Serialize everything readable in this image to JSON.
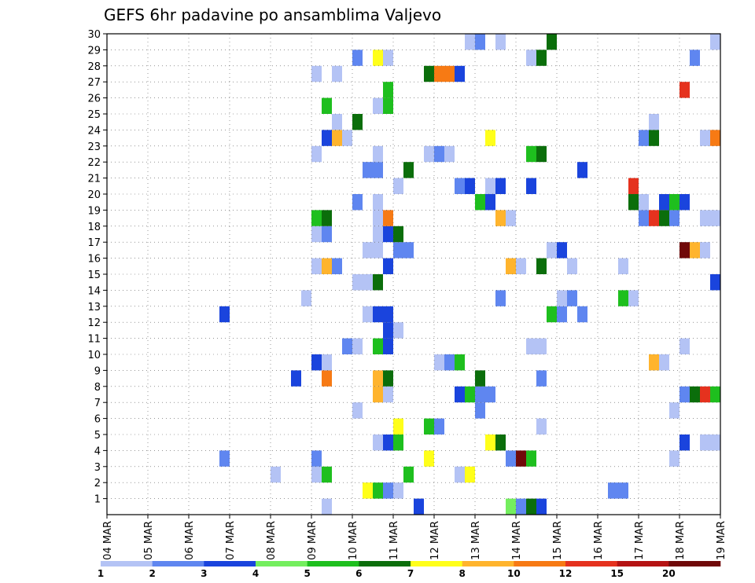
{
  "chart_data": {
    "type": "heatmap",
    "title": "GEFS 6hr padavine po ansamblima Valjevo",
    "x_tick_labels": [
      "04 MAR",
      "05 MAR",
      "06 MAR",
      "07 MAR",
      "08 MAR",
      "09 MAR",
      "10 MAR",
      "11 MAR",
      "12 MAR",
      "13 MAR",
      "14 MAR",
      "15 MAR",
      "16 MAR",
      "17 MAR",
      "18 MAR",
      "19 MAR"
    ],
    "y_tick_labels": [
      "1",
      "2",
      "3",
      "4",
      "5",
      "6",
      "7",
      "8",
      "9",
      "10",
      "11",
      "12",
      "13",
      "14",
      "15",
      "16",
      "17",
      "18",
      "19",
      "20",
      "21",
      "22",
      "23",
      "24",
      "25",
      "26",
      "27",
      "28",
      "29",
      "30"
    ],
    "xlim_days": [
      0,
      15
    ],
    "ylim_members": [
      0,
      30
    ],
    "grid": true,
    "colorbar_levels": [
      1,
      2,
      3,
      4,
      5,
      6,
      7,
      8,
      10,
      12,
      15,
      20
    ],
    "colorbar_colors": [
      "#b4c3f5",
      "#5f86f0",
      "#1a44dd",
      "#74ee5e",
      "#1ebf1e",
      "#0b6e0b",
      "#ffff1a",
      "#ffb42d",
      "#f77a14",
      "#e5321e",
      "#b51313",
      "#700909"
    ],
    "cells": [
      [
        5.25,
        0,
        0
      ],
      [
        7.5,
        0,
        2
      ],
      [
        9.75,
        0,
        3
      ],
      [
        10,
        0,
        1
      ],
      [
        10.25,
        0,
        5
      ],
      [
        10.5,
        0,
        2
      ],
      [
        6.25,
        1,
        6
      ],
      [
        6.5,
        1,
        4
      ],
      [
        6.75,
        1,
        1
      ],
      [
        7,
        1,
        0
      ],
      [
        12.25,
        1,
        1
      ],
      [
        12.5,
        1,
        1
      ],
      [
        4,
        2,
        0
      ],
      [
        5,
        2,
        0
      ],
      [
        5.25,
        2,
        4
      ],
      [
        7.25,
        2,
        4
      ],
      [
        8.5,
        2,
        0
      ],
      [
        8.75,
        2,
        6
      ],
      [
        2.75,
        3,
        1
      ],
      [
        5,
        3,
        1
      ],
      [
        7.75,
        3,
        6
      ],
      [
        9.75,
        3,
        1
      ],
      [
        10,
        3,
        11
      ],
      [
        10.25,
        3,
        4
      ],
      [
        13.75,
        3,
        0
      ],
      [
        6.5,
        4,
        0
      ],
      [
        6.75,
        4,
        2
      ],
      [
        7,
        4,
        4
      ],
      [
        9.25,
        4,
        6
      ],
      [
        9.5,
        4,
        5
      ],
      [
        14,
        4,
        2
      ],
      [
        14.5,
        4,
        0
      ],
      [
        14.75,
        4,
        0
      ],
      [
        7,
        5,
        6
      ],
      [
        7.75,
        5,
        4
      ],
      [
        8,
        5,
        1
      ],
      [
        10.5,
        5,
        0
      ],
      [
        6,
        6,
        0
      ],
      [
        9,
        6,
        1
      ],
      [
        13.75,
        6,
        0
      ],
      [
        6.5,
        7,
        7
      ],
      [
        6.75,
        7,
        0
      ],
      [
        8.5,
        7,
        2
      ],
      [
        8.75,
        7,
        4
      ],
      [
        9,
        7,
        1
      ],
      [
        9.25,
        7,
        1
      ],
      [
        14,
        7,
        1
      ],
      [
        14.25,
        7,
        5
      ],
      [
        14.5,
        7,
        9
      ],
      [
        14.75,
        7,
        4
      ],
      [
        4.5,
        8,
        2
      ],
      [
        5.25,
        8,
        8
      ],
      [
        6.5,
        8,
        7
      ],
      [
        6.75,
        8,
        5
      ],
      [
        9,
        8,
        5
      ],
      [
        10.5,
        8,
        1
      ],
      [
        5,
        9,
        2
      ],
      [
        5.25,
        9,
        0
      ],
      [
        8,
        9,
        0
      ],
      [
        8.25,
        9,
        1
      ],
      [
        8.5,
        9,
        4
      ],
      [
        13.25,
        9,
        7
      ],
      [
        13.5,
        9,
        0
      ],
      [
        5.75,
        10,
        1
      ],
      [
        6,
        10,
        0
      ],
      [
        6.5,
        10,
        4
      ],
      [
        6.75,
        10,
        2
      ],
      [
        10.25,
        10,
        0
      ],
      [
        10.5,
        10,
        0
      ],
      [
        14,
        10,
        0
      ],
      [
        6.75,
        11,
        2
      ],
      [
        7,
        11,
        0
      ],
      [
        2.75,
        12,
        2
      ],
      [
        6.25,
        12,
        0
      ],
      [
        6.5,
        12,
        2
      ],
      [
        6.75,
        12,
        2
      ],
      [
        10.75,
        12,
        4
      ],
      [
        11,
        12,
        1
      ],
      [
        11.5,
        12,
        1
      ],
      [
        4.75,
        13,
        0
      ],
      [
        9.5,
        13,
        1
      ],
      [
        11,
        13,
        0
      ],
      [
        11.25,
        13,
        1
      ],
      [
        12.5,
        13,
        4
      ],
      [
        12.75,
        13,
        0
      ],
      [
        6,
        14,
        0
      ],
      [
        6.25,
        14,
        0
      ],
      [
        6.5,
        14,
        5
      ],
      [
        14.75,
        14,
        2
      ],
      [
        15,
        14,
        10
      ],
      [
        5,
        15,
        0
      ],
      [
        5.25,
        15,
        7
      ],
      [
        5.5,
        15,
        1
      ],
      [
        6.75,
        15,
        2
      ],
      [
        9.75,
        15,
        7
      ],
      [
        10,
        15,
        0
      ],
      [
        10.5,
        15,
        5
      ],
      [
        11.25,
        15,
        0
      ],
      [
        12.5,
        15,
        0
      ],
      [
        6.25,
        16,
        0
      ],
      [
        6.5,
        16,
        0
      ],
      [
        7,
        16,
        1
      ],
      [
        7.25,
        16,
        1
      ],
      [
        10.75,
        16,
        0
      ],
      [
        11,
        16,
        2
      ],
      [
        14,
        16,
        11
      ],
      [
        14.25,
        16,
        7
      ],
      [
        14.5,
        16,
        0
      ],
      [
        5,
        17,
        0
      ],
      [
        5.25,
        17,
        1
      ],
      [
        6.5,
        17,
        0
      ],
      [
        6.75,
        17,
        2
      ],
      [
        7,
        17,
        5
      ],
      [
        5,
        18,
        4
      ],
      [
        5.25,
        18,
        5
      ],
      [
        6.5,
        18,
        0
      ],
      [
        6.75,
        18,
        8
      ],
      [
        9.5,
        18,
        7
      ],
      [
        9.75,
        18,
        0
      ],
      [
        13,
        18,
        1
      ],
      [
        13.25,
        18,
        9
      ],
      [
        13.5,
        18,
        5
      ],
      [
        13.75,
        18,
        1
      ],
      [
        14.5,
        18,
        0
      ],
      [
        14.75,
        18,
        0
      ],
      [
        6,
        19,
        1
      ],
      [
        6.5,
        19,
        0
      ],
      [
        9,
        19,
        4
      ],
      [
        9.25,
        19,
        2
      ],
      [
        12.75,
        19,
        5
      ],
      [
        13,
        19,
        0
      ],
      [
        13.5,
        19,
        2
      ],
      [
        13.75,
        19,
        4
      ],
      [
        14,
        19,
        2
      ],
      [
        7,
        20,
        0
      ],
      [
        8.5,
        20,
        1
      ],
      [
        8.75,
        20,
        2
      ],
      [
        9.25,
        20,
        0
      ],
      [
        9.5,
        20,
        2
      ],
      [
        10.25,
        20,
        2
      ],
      [
        12.75,
        20,
        9
      ],
      [
        6.25,
        21,
        1
      ],
      [
        6.5,
        21,
        1
      ],
      [
        7.25,
        21,
        5
      ],
      [
        11.5,
        21,
        2
      ],
      [
        5,
        22,
        0
      ],
      [
        6.5,
        22,
        0
      ],
      [
        7.75,
        22,
        0
      ],
      [
        8,
        22,
        1
      ],
      [
        8.25,
        22,
        0
      ],
      [
        10.25,
        22,
        4
      ],
      [
        10.5,
        22,
        5
      ],
      [
        5.25,
        23,
        2
      ],
      [
        5.5,
        23,
        7
      ],
      [
        5.75,
        23,
        0
      ],
      [
        9.25,
        23,
        6
      ],
      [
        13,
        23,
        1
      ],
      [
        13.25,
        23,
        5
      ],
      [
        14.5,
        23,
        0
      ],
      [
        14.75,
        23,
        8
      ],
      [
        5.5,
        24,
        0
      ],
      [
        6,
        24,
        5
      ],
      [
        13.25,
        24,
        0
      ],
      [
        5.25,
        25,
        4
      ],
      [
        6.5,
        25,
        0
      ],
      [
        6.75,
        25,
        4
      ],
      [
        6.75,
        26,
        4
      ],
      [
        14,
        26,
        9
      ],
      [
        5,
        27,
        0
      ],
      [
        5.5,
        27,
        0
      ],
      [
        7.75,
        27,
        5
      ],
      [
        8,
        27,
        8
      ],
      [
        8.25,
        27,
        8
      ],
      [
        8.5,
        27,
        2
      ],
      [
        6,
        28,
        1
      ],
      [
        6.5,
        28,
        6
      ],
      [
        6.75,
        28,
        0
      ],
      [
        10.25,
        28,
        0
      ],
      [
        10.5,
        28,
        5
      ],
      [
        14.25,
        28,
        1
      ],
      [
        8.75,
        29,
        0
      ],
      [
        9,
        29,
        1
      ],
      [
        9.5,
        29,
        0
      ],
      [
        10.75,
        29,
        5
      ],
      [
        14.75,
        29,
        0
      ]
    ]
  }
}
